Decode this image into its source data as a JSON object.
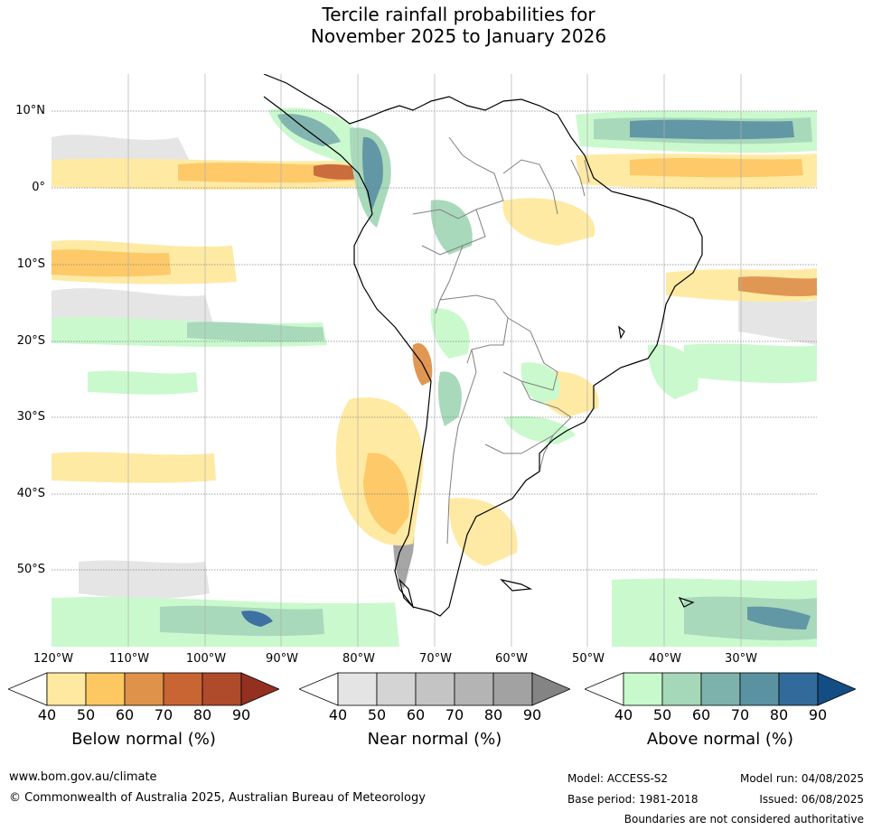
{
  "title": {
    "line1": "Tercile rainfall probabilities for",
    "line2": "November 2025 to January 2026"
  },
  "map": {
    "lat_labels": [
      "10°N",
      "0°",
      "10°S",
      "20°S",
      "30°S",
      "40°S",
      "50°S"
    ],
    "lon_labels": [
      "120°W",
      "110°W",
      "100°W",
      "90°W",
      "80°W",
      "70°W",
      "60°W",
      "50°W",
      "40°W",
      "30°W"
    ],
    "colors": {
      "coast": "#000000",
      "border": "#808080",
      "grid": "#808080"
    }
  },
  "legends": [
    {
      "id": "below",
      "title": "Below normal (%)",
      "ticks": [
        "40",
        "50",
        "60",
        "70",
        "80",
        "90"
      ],
      "colors": [
        "#ffe9a0",
        "#fdc762",
        "#df924a",
        "#c96533",
        "#af4a2a",
        "#943020"
      ]
    },
    {
      "id": "near",
      "title": "Near normal (%)",
      "ticks": [
        "40",
        "50",
        "60",
        "70",
        "80",
        "90"
      ],
      "colors": [
        "#e4e4e4",
        "#d4d4d4",
        "#c4c4c4",
        "#b4b4b4",
        "#a2a2a2",
        "#848484"
      ]
    },
    {
      "id": "above",
      "title": "Above normal (%)",
      "ticks": [
        "40",
        "50",
        "60",
        "70",
        "80",
        "90"
      ],
      "colors": [
        "#c8f9cc",
        "#a5d8b8",
        "#7db2ac",
        "#5a92a2",
        "#336a9c",
        "#134d84"
      ]
    }
  ],
  "footer": {
    "website": "www.bom.gov.au/climate",
    "copyright": "© Commonwealth of Australia 2025, Australian Bureau of Meteorology",
    "model": "Model: ACCESS-S2",
    "base_period": "Base period: 1981-2018",
    "model_run": "Model run: 04/08/2025",
    "issued": "Issued: 06/08/2025",
    "disclaimer": "Boundaries are not considered authoritative"
  }
}
